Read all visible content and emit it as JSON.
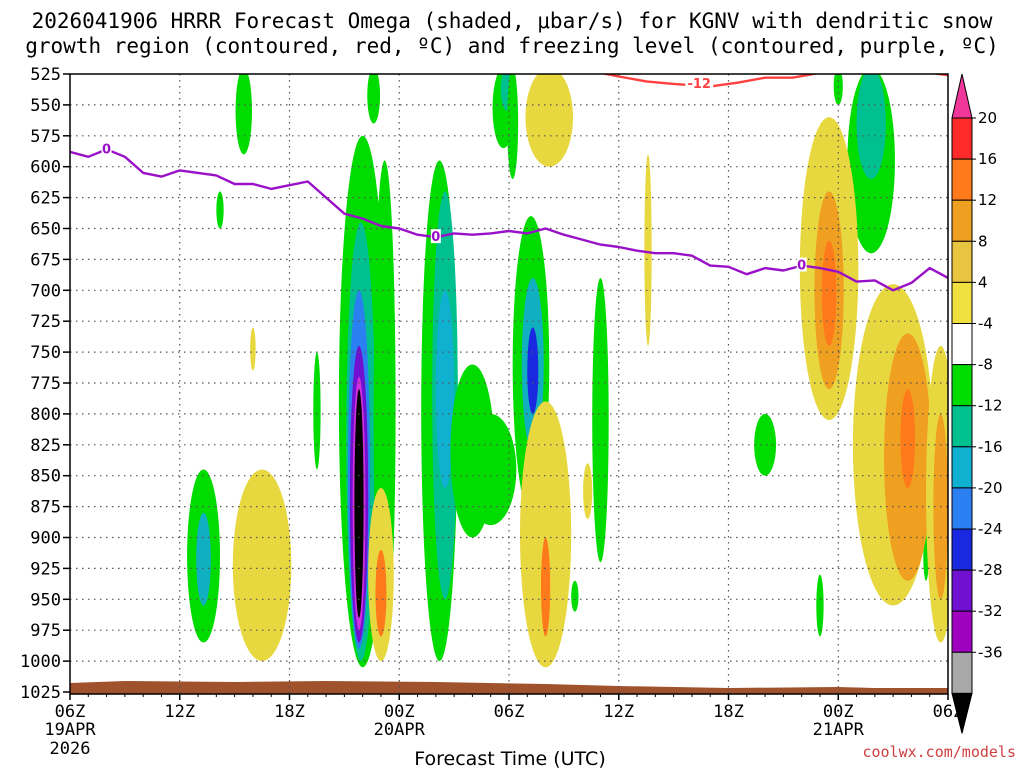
{
  "chart_data": {
    "type": "heatmap",
    "title_line1": "2026041906 HRRR Forecast Omega (shaded, μbar/s) for KGNV with dendritic snow",
    "title_line2": "growth region (contoured, red, ºC) and freezing level (contoured, purple, ºC)",
    "xlabel": "Forecast Time (UTC)",
    "credit": "coolwx.com/models",
    "y_levels": [
      525,
      550,
      575,
      600,
      625,
      650,
      675,
      700,
      725,
      750,
      775,
      800,
      825,
      850,
      875,
      900,
      925,
      950,
      975,
      1000,
      1025
    ],
    "y_tick_labels": [
      "525",
      "550",
      "575",
      "600",
      "625",
      "650",
      "675",
      "700",
      "725",
      "750",
      "775",
      "800",
      "825",
      "850",
      "875",
      "900",
      "925",
      "950",
      "975",
      "1000",
      "1025"
    ],
    "ylim": [
      525,
      1025
    ],
    "x_hours": [
      0,
      6,
      12,
      18,
      24,
      30,
      36,
      42,
      48
    ],
    "x_tick_labels": [
      "06Z",
      "12Z",
      "18Z",
      "00Z",
      "06Z",
      "12Z",
      "18Z",
      "00Z",
      "06Z"
    ],
    "x_date_labels": [
      {
        "hour": 0,
        "line1": "19APR",
        "line2": "2026"
      },
      {
        "hour": 18,
        "line1": "20APR",
        "line2": ""
      },
      {
        "hour": 42,
        "line1": "21APR",
        "line2": ""
      }
    ],
    "xlim": [
      0,
      48
    ],
    "colorbar": {
      "labels": [
        "20",
        "16",
        "12",
        "8",
        "4",
        "-4",
        "-8",
        "-12",
        "-16",
        "-20",
        "-24",
        "-28",
        "-32",
        "-36"
      ],
      "colors": [
        "#ff2a2a",
        "#ff7a1a",
        "#f0a020",
        "#e8c440",
        "#f0e040",
        "#ffffff",
        "#00dc00",
        "#00c090",
        "#10b0d0",
        "#2a80f0",
        "#1a28e0",
        "#7010d0",
        "#a000c0",
        "#a8a8a8"
      ],
      "top_color": "#f0389a",
      "bottom_color": "#000000"
    },
    "freezing_level_label": "0",
    "freezing_level": [
      {
        "hour": 0,
        "p": 588
      },
      {
        "hour": 1,
        "p": 592
      },
      {
        "hour": 2,
        "p": 586
      },
      {
        "hour": 3,
        "p": 592
      },
      {
        "hour": 4,
        "p": 605
      },
      {
        "hour": 5,
        "p": 608
      },
      {
        "hour": 6,
        "p": 603
      },
      {
        "hour": 7,
        "p": 605
      },
      {
        "hour": 8,
        "p": 607
      },
      {
        "hour": 9,
        "p": 614
      },
      {
        "hour": 10,
        "p": 614
      },
      {
        "hour": 11,
        "p": 618
      },
      {
        "hour": 12,
        "p": 615
      },
      {
        "hour": 13,
        "p": 612
      },
      {
        "hour": 14,
        "p": 625
      },
      {
        "hour": 15,
        "p": 638
      },
      {
        "hour": 16,
        "p": 642
      },
      {
        "hour": 17,
        "p": 648
      },
      {
        "hour": 18,
        "p": 650
      },
      {
        "hour": 19,
        "p": 655
      },
      {
        "hour": 20,
        "p": 657
      },
      {
        "hour": 21,
        "p": 654
      },
      {
        "hour": 22,
        "p": 655
      },
      {
        "hour": 23,
        "p": 654
      },
      {
        "hour": 24,
        "p": 652
      },
      {
        "hour": 25,
        "p": 654
      },
      {
        "hour": 26,
        "p": 650
      },
      {
        "hour": 27,
        "p": 655
      },
      {
        "hour": 28,
        "p": 659
      },
      {
        "hour": 29,
        "p": 663
      },
      {
        "hour": 30,
        "p": 665
      },
      {
        "hour": 31,
        "p": 668
      },
      {
        "hour": 32,
        "p": 670
      },
      {
        "hour": 33,
        "p": 670
      },
      {
        "hour": 34,
        "p": 672
      },
      {
        "hour": 35,
        "p": 680
      },
      {
        "hour": 36,
        "p": 681
      },
      {
        "hour": 37,
        "p": 687
      },
      {
        "hour": 38,
        "p": 682
      },
      {
        "hour": 39,
        "p": 684
      },
      {
        "hour": 40,
        "p": 680
      },
      {
        "hour": 41,
        "p": 682
      },
      {
        "hour": 42,
        "p": 685
      },
      {
        "hour": 43,
        "p": 693
      },
      {
        "hour": 44,
        "p": 692
      },
      {
        "hour": 45,
        "p": 700
      },
      {
        "hour": 46,
        "p": 694
      },
      {
        "hour": 47,
        "p": 682
      },
      {
        "hour": 48,
        "p": 690
      }
    ],
    "dgz_label": "-12",
    "dgz_contour": [
      {
        "hour": 28.3,
        "p": 522
      },
      {
        "hour": 30,
        "p": 527
      },
      {
        "hour": 31.5,
        "p": 531
      },
      {
        "hour": 33,
        "p": 533
      },
      {
        "hour": 35,
        "p": 535
      },
      {
        "hour": 36.5,
        "p": 532
      },
      {
        "hour": 38,
        "p": 528
      },
      {
        "hour": 39.5,
        "p": 528
      },
      {
        "hour": 41,
        "p": 524
      },
      {
        "hour": 42.5,
        "p": 522
      },
      {
        "hour": 44,
        "p": 521
      },
      {
        "hour": 45.5,
        "p": 522
      },
      {
        "hour": 47,
        "p": 524
      },
      {
        "hour": 48,
        "p": 526
      }
    ],
    "omega_features": [
      {
        "hour": 20.2,
        "top": 595,
        "bot": 1000,
        "hw": 1.0,
        "value": -6
      },
      {
        "hour": 20.5,
        "top": 620,
        "bot": 950,
        "hw": 0.7,
        "value": -10
      },
      {
        "hour": 20.5,
        "top": 700,
        "bot": 860,
        "hw": 0.5,
        "value": -14
      },
      {
        "hour": 16.0,
        "top": 575,
        "bot": 1005,
        "hw": 1.3,
        "value": -6
      },
      {
        "hour": 15.9,
        "top": 645,
        "bot": 1000,
        "hw": 0.8,
        "value": -10
      },
      {
        "hour": 15.8,
        "top": 700,
        "bot": 990,
        "hw": 0.6,
        "value": -16
      },
      {
        "hour": 15.8,
        "top": 745,
        "bot": 985,
        "hw": 0.5,
        "value": -24
      },
      {
        "hour": 15.8,
        "top": 770,
        "bot": 975,
        "hw": 0.35,
        "value": -32
      },
      {
        "hour": 15.8,
        "top": 780,
        "bot": 965,
        "hw": 0.25,
        "value": -40
      },
      {
        "hour": 17.2,
        "top": 595,
        "bot": 995,
        "hw": 0.6,
        "value": -6
      },
      {
        "hour": 22.0,
        "top": 760,
        "bot": 900,
        "hw": 1.2,
        "value": -6
      },
      {
        "hour": 25.2,
        "top": 640,
        "bot": 880,
        "hw": 1.0,
        "value": -6
      },
      {
        "hour": 25.3,
        "top": 690,
        "bot": 830,
        "hw": 0.6,
        "value": -12
      },
      {
        "hour": 25.3,
        "top": 730,
        "bot": 800,
        "hw": 0.3,
        "value": -20
      },
      {
        "hour": 23.0,
        "top": 800,
        "bot": 890,
        "hw": 1.4,
        "value": -6
      },
      {
        "hour": 16.6,
        "top": 520,
        "bot": 565,
        "hw": 0.35,
        "value": -6
      },
      {
        "hour": 23.7,
        "top": 520,
        "bot": 585,
        "hw": 0.6,
        "value": -6
      },
      {
        "hour": 23.9,
        "top": 520,
        "bot": 555,
        "hw": 0.35,
        "value": -10
      },
      {
        "hour": 24.2,
        "top": 520,
        "bot": 610,
        "hw": 0.3,
        "value": -6
      },
      {
        "hour": 9.5,
        "top": 520,
        "bot": 590,
        "hw": 0.45,
        "value": -6
      },
      {
        "hour": 8.2,
        "top": 620,
        "bot": 650,
        "hw": 0.2,
        "value": -6
      },
      {
        "hour": 7.3,
        "top": 845,
        "bot": 985,
        "hw": 0.9,
        "value": -6
      },
      {
        "hour": 7.3,
        "top": 880,
        "bot": 955,
        "hw": 0.4,
        "value": -12
      },
      {
        "hour": 13.5,
        "top": 750,
        "bot": 845,
        "hw": 0.2,
        "value": -6
      },
      {
        "hour": 29.0,
        "top": 690,
        "bot": 920,
        "hw": 0.45,
        "value": -6
      },
      {
        "hour": 38.0,
        "top": 800,
        "bot": 850,
        "hw": 0.6,
        "value": -6
      },
      {
        "hour": 27.6,
        "top": 935,
        "bot": 960,
        "hw": 0.2,
        "value": -6
      },
      {
        "hour": 41.0,
        "top": 930,
        "bot": 980,
        "hw": 0.2,
        "value": -6
      },
      {
        "hour": 43.8,
        "top": 520,
        "bot": 670,
        "hw": 1.3,
        "value": -6
      },
      {
        "hour": 43.8,
        "top": 520,
        "bot": 610,
        "hw": 0.8,
        "value": -10
      },
      {
        "hour": 42.0,
        "top": 520,
        "bot": 550,
        "hw": 0.25,
        "value": -6
      },
      {
        "hour": 46.8,
        "top": 895,
        "bot": 935,
        "hw": 0.15,
        "value": -6
      },
      {
        "hour": 41.5,
        "top": 560,
        "bot": 805,
        "hw": 1.6,
        "value": 6
      },
      {
        "hour": 41.5,
        "top": 620,
        "bot": 780,
        "hw": 0.8,
        "value": 10
      },
      {
        "hour": 41.5,
        "top": 660,
        "bot": 745,
        "hw": 0.4,
        "value": 14
      },
      {
        "hour": 45.0,
        "top": 695,
        "bot": 955,
        "hw": 2.2,
        "value": 6
      },
      {
        "hour": 45.8,
        "top": 735,
        "bot": 935,
        "hw": 1.3,
        "value": 10
      },
      {
        "hour": 45.8,
        "top": 780,
        "bot": 860,
        "hw": 0.4,
        "value": 14
      },
      {
        "hour": 47.6,
        "top": 745,
        "bot": 985,
        "hw": 0.8,
        "value": 6
      },
      {
        "hour": 47.6,
        "top": 800,
        "bot": 950,
        "hw": 0.4,
        "value": 10
      },
      {
        "hour": 10.5,
        "top": 845,
        "bot": 1000,
        "hw": 1.6,
        "value": 6
      },
      {
        "hour": 17.0,
        "top": 860,
        "bot": 1000,
        "hw": 0.7,
        "value": 6
      },
      {
        "hour": 17.0,
        "top": 910,
        "bot": 980,
        "hw": 0.3,
        "value": 12
      },
      {
        "hour": 26.0,
        "top": 790,
        "bot": 1005,
        "hw": 1.4,
        "value": 6
      },
      {
        "hour": 26.0,
        "top": 900,
        "bot": 980,
        "hw": 0.25,
        "value": 12
      },
      {
        "hour": 26.2,
        "top": 520,
        "bot": 600,
        "hw": 1.3,
        "value": 6
      },
      {
        "hour": 31.6,
        "top": 590,
        "bot": 745,
        "hw": 0.2,
        "value": 6
      },
      {
        "hour": 10.0,
        "top": 730,
        "bot": 765,
        "hw": 0.15,
        "value": 6
      },
      {
        "hour": 28.3,
        "top": 840,
        "bot": 885,
        "hw": 0.25,
        "value": 6
      }
    ]
  }
}
